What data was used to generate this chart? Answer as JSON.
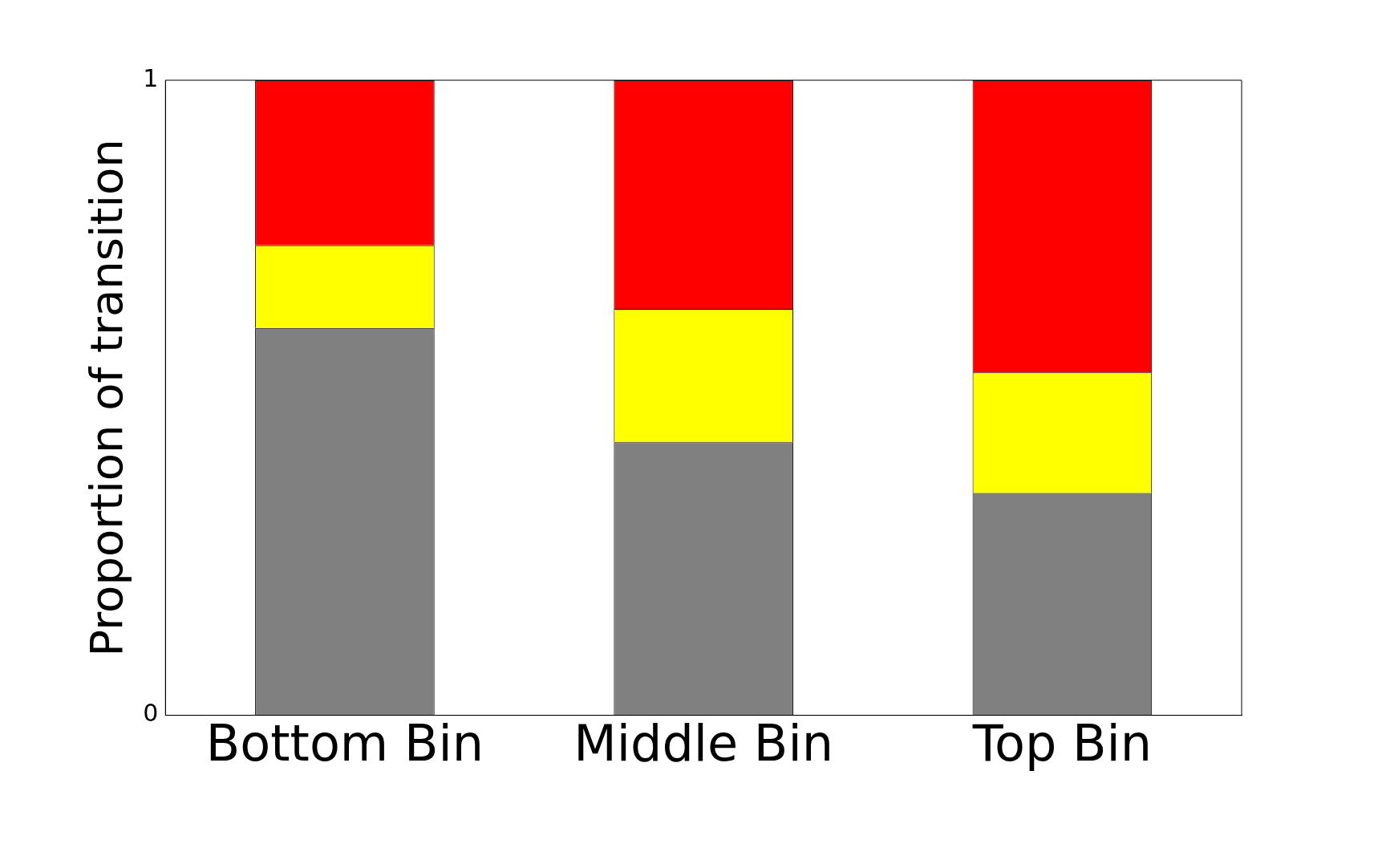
{
  "chart_data": {
    "type": "bar",
    "stacked": true,
    "ylabel": "Proportion of transition",
    "categories": [
      "Bottom Bin",
      "Middle Bin",
      "Top Bin"
    ],
    "series": [
      {
        "color": "#808080",
        "values": [
          0.61,
          0.43,
          0.35
        ]
      },
      {
        "color": "#ffff00",
        "values": [
          0.13,
          0.21,
          0.19
        ]
      },
      {
        "color": "#ff0000",
        "values": [
          0.26,
          0.36,
          0.46
        ]
      }
    ],
    "ylim": [
      0,
      1
    ],
    "yticks": [
      0,
      1
    ],
    "grid": false,
    "legend": false
  }
}
